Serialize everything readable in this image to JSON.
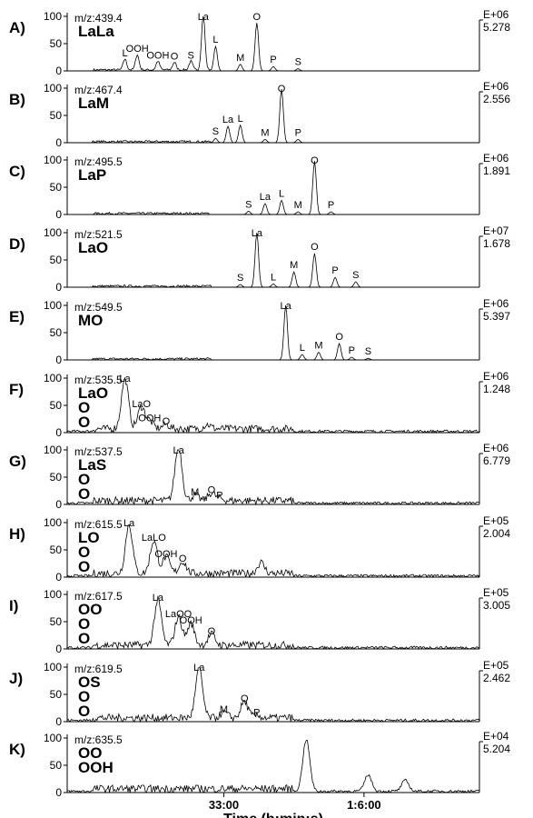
{
  "chart_data": {
    "type": "line",
    "xlabel": "Time (h:min:s)",
    "x_ticks": [
      "33:00",
      "1:6:00"
    ],
    "panels": [
      {
        "letter": "A)",
        "mz": "m/z:439.4",
        "compound": "LaLa",
        "exp": "E+06",
        "max": "5.278",
        "yticks": [
          "0",
          "50",
          "100"
        ],
        "peaks": [
          {
            "label": "L",
            "t": 0.14,
            "h": 20
          },
          {
            "label": "OOH",
            "t": 0.17,
            "h": 28
          },
          {
            "label": "OOH",
            "t": 0.22,
            "h": 16
          },
          {
            "label": "O",
            "t": 0.26,
            "h": 14
          },
          {
            "label": "S",
            "t": 0.3,
            "h": 16
          },
          {
            "label": "La",
            "t": 0.33,
            "h": 100
          },
          {
            "label": "L",
            "t": 0.36,
            "h": 45
          },
          {
            "label": "M",
            "t": 0.42,
            "h": 12
          },
          {
            "label": "O",
            "t": 0.46,
            "h": 88
          },
          {
            "label": "P",
            "t": 0.5,
            "h": 8
          },
          {
            "label": "S",
            "t": 0.56,
            "h": 4
          }
        ],
        "annotations": [
          "La",
          "L",
          "M",
          "O",
          "P",
          "S",
          "L",
          "OOH",
          "O",
          "OH",
          "O",
          "S",
          "O"
        ]
      },
      {
        "letter": "B)",
        "mz": "m/z:467.4",
        "compound": "LaM",
        "exp": "E+06",
        "max": "2.556",
        "yticks": [
          "0",
          "50",
          "100"
        ],
        "peaks": [
          {
            "label": "S",
            "t": 0.36,
            "h": 8
          },
          {
            "label": "La",
            "t": 0.39,
            "h": 30
          },
          {
            "label": "L",
            "t": 0.42,
            "h": 32
          },
          {
            "label": "M",
            "t": 0.48,
            "h": 6
          },
          {
            "label": "O",
            "t": 0.52,
            "h": 98
          },
          {
            "label": "P",
            "t": 0.56,
            "h": 6
          }
        ],
        "annotations": [
          "O",
          "S",
          "La",
          "L",
          "M",
          "P"
        ]
      },
      {
        "letter": "C)",
        "mz": "m/z:495.5",
        "compound": "LaP",
        "exp": "E+06",
        "max": "1.891",
        "yticks": [
          "0",
          "50",
          "100"
        ],
        "peaks": [
          {
            "label": "S",
            "t": 0.44,
            "h": 6
          },
          {
            "label": "La",
            "t": 0.48,
            "h": 20
          },
          {
            "label": "L",
            "t": 0.52,
            "h": 26
          },
          {
            "label": "M",
            "t": 0.56,
            "h": 5
          },
          {
            "label": "O",
            "t": 0.6,
            "h": 98
          },
          {
            "label": "P",
            "t": 0.64,
            "h": 5
          }
        ],
        "annotations": [
          "O",
          "S",
          "La",
          "L",
          "M",
          "P"
        ]
      },
      {
        "letter": "D)",
        "mz": "m/z:521.5",
        "compound": "LaO",
        "exp": "E+07",
        "max": "1.678",
        "yticks": [
          "0",
          "50",
          "100"
        ],
        "peaks": [
          {
            "label": "S",
            "t": 0.42,
            "h": 5
          },
          {
            "label": "La",
            "t": 0.46,
            "h": 100
          },
          {
            "label": "L",
            "t": 0.5,
            "h": 6
          },
          {
            "label": "M",
            "t": 0.55,
            "h": 28
          },
          {
            "label": "O",
            "t": 0.6,
            "h": 62
          },
          {
            "label": "P",
            "t": 0.65,
            "h": 18
          },
          {
            "label": "S",
            "t": 0.7,
            "h": 10
          }
        ],
        "annotations": [
          "S",
          "La",
          "L",
          "M",
          "O",
          "P",
          "S"
        ]
      },
      {
        "letter": "E)",
        "mz": "m/z:549.5",
        "compound": "MO",
        "exp": "E+06",
        "max": "5.397",
        "yticks": [
          "0",
          "50",
          "100"
        ],
        "peaks": [
          {
            "label": "La",
            "t": 0.53,
            "h": 100
          },
          {
            "label": "L",
            "t": 0.57,
            "h": 10
          },
          {
            "label": "M",
            "t": 0.61,
            "h": 14
          },
          {
            "label": "O",
            "t": 0.66,
            "h": 30
          },
          {
            "label": "P",
            "t": 0.69,
            "h": 5
          },
          {
            "label": "S",
            "t": 0.73,
            "h": 3
          }
        ],
        "annotations": [
          "La",
          "L",
          "M",
          "O",
          "P",
          "S"
        ]
      },
      {
        "letter": "F)",
        "mz": "m/z:535.5",
        "compound": "LaO\nO\nO",
        "exp": "E+06",
        "max": "1.248",
        "yticks": [
          "0",
          "50",
          "100"
        ],
        "peaks": [
          {
            "label": "La",
            "t": 0.14,
            "h": 92
          },
          {
            "label": "LaO",
            "t": 0.18,
            "h": 40
          },
          {
            "label": "OOH",
            "t": 0.2,
            "h": 14
          },
          {
            "label": "O",
            "t": 0.24,
            "h": 8
          },
          {
            "label": "",
            "t": 0.34,
            "h": 8
          }
        ],
        "annotations": [
          "La",
          "LaO",
          "OOH",
          "La",
          "OO",
          "O"
        ]
      },
      {
        "letter": "G)",
        "mz": "m/z:537.5",
        "compound": "LaS\nO\nO",
        "exp": "E+06",
        "max": "6.779",
        "yticks": [
          "0",
          "50",
          "100"
        ],
        "peaks": [
          {
            "label": "La",
            "t": 0.27,
            "h": 100
          },
          {
            "label": "M",
            "t": 0.31,
            "h": 10
          },
          {
            "label": "O",
            "t": 0.35,
            "h": 14
          },
          {
            "label": "P",
            "t": 0.37,
            "h": 4
          }
        ],
        "annotations": [
          "La",
          "M",
          "O",
          "P"
        ]
      },
      {
        "letter": "H)",
        "mz": "m/z:615.5",
        "compound": "LO\nO\nO",
        "exp": "E+05",
        "max": "2.004",
        "yticks": [
          "0",
          "50",
          "100"
        ],
        "peaks": [
          {
            "label": "La",
            "t": 0.15,
            "h": 90
          },
          {
            "label": "LaLO",
            "t": 0.21,
            "h": 60
          },
          {
            "label": "OOH",
            "t": 0.24,
            "h": 30
          },
          {
            "label": "O",
            "t": 0.28,
            "h": 22
          },
          {
            "label": "",
            "t": 0.47,
            "h": 20
          }
        ],
        "annotations": [
          "LaLO",
          "OOH",
          "LaLO",
          "O"
        ]
      },
      {
        "letter": "I)",
        "mz": "m/z:617.5",
        "compound": "OO\nO\nO",
        "exp": "E+05",
        "max": "3.005",
        "yticks": [
          "0",
          "50",
          "100"
        ],
        "peaks": [
          {
            "label": "La",
            "t": 0.22,
            "h": 82
          },
          {
            "label": "LaOO",
            "t": 0.27,
            "h": 52
          },
          {
            "label": "OOH",
            "t": 0.3,
            "h": 40
          },
          {
            "label": "O",
            "t": 0.35,
            "h": 20
          }
        ],
        "annotations": [
          "LaOO",
          "OOH",
          "La",
          "OO",
          "O"
        ]
      },
      {
        "letter": "J)",
        "mz": "m/z:619.5",
        "compound": "OS\nO\nO",
        "exp": "E+05",
        "max": "2.462",
        "yticks": [
          "0",
          "50",
          "100"
        ],
        "peaks": [
          {
            "label": "La",
            "t": 0.32,
            "h": 90
          },
          {
            "label": "M",
            "t": 0.38,
            "h": 10
          },
          {
            "label": "O",
            "t": 0.43,
            "h": 30
          },
          {
            "label": "P",
            "t": 0.46,
            "h": 4
          }
        ],
        "annotations": [
          "La",
          "M",
          "O",
          "P"
        ]
      },
      {
        "letter": "K)",
        "mz": "m/z:635.5",
        "compound": "OO\nOOH",
        "exp": "E+04",
        "max": "5.204",
        "yticks": [
          "0",
          "50",
          "100"
        ],
        "peaks": [
          {
            "label": "",
            "t": 0.58,
            "h": 95
          },
          {
            "label": "",
            "t": 0.73,
            "h": 30
          },
          {
            "label": "",
            "t": 0.82,
            "h": 20
          }
        ],
        "annotations": []
      }
    ]
  }
}
